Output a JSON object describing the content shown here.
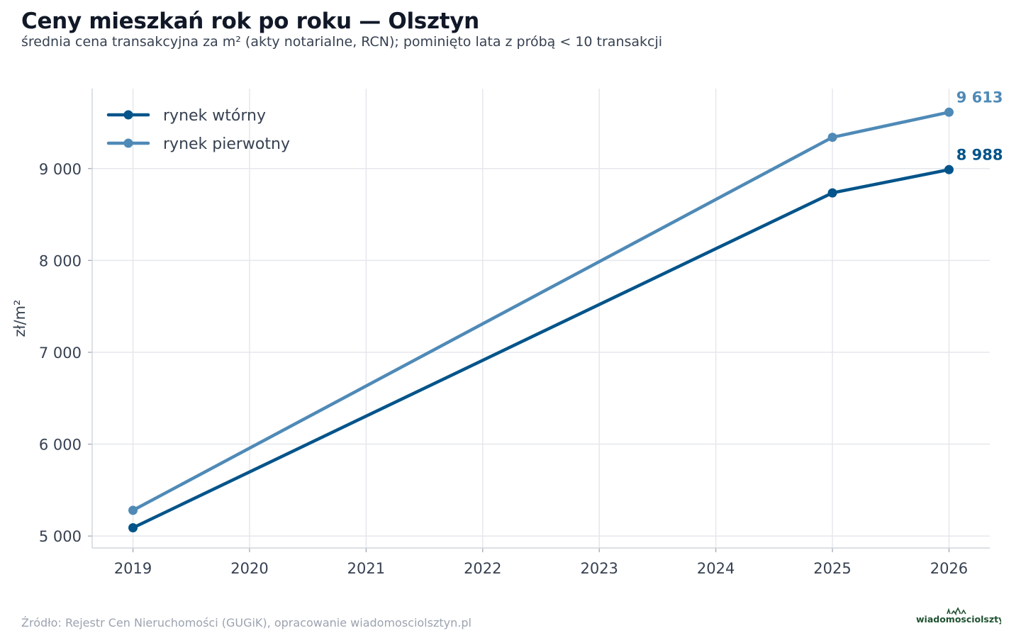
{
  "header": {
    "title": "Ceny mieszkań rok po roku — Olsztyn",
    "subtitle": "średnia cena transakcyjna za m² (akty notarialne, RCN); pominięto lata z próbą < 10 transakcji"
  },
  "footer": {
    "source": "Źródło: Rejestr Cen Nieruchomości (GUGiK), opracowanie wiadomosciolsztyn.pl",
    "logo_text": "wiadomosciolsztyn.pl"
  },
  "chart_data": {
    "type": "line",
    "title": "Ceny mieszkań rok po roku — Olsztyn",
    "subtitle": "średnia cena transakcyjna za m² (akty notarialne, RCN); pominięto lata z próbą < 10 transakcji",
    "xlabel": "",
    "ylabel": "zł/m²",
    "x_ticks": [
      "2019",
      "2020",
      "2021",
      "2022",
      "2023",
      "2024",
      "2025",
      "2026"
    ],
    "y_ticks": [
      5000,
      6000,
      7000,
      8000,
      9000
    ],
    "y_tick_labels": [
      "5 000",
      "6 000",
      "7 000",
      "8 000",
      "9 000"
    ],
    "xlim": [
      2018.65,
      2026.35
    ],
    "ylim": [
      4870,
      9870
    ],
    "grid": true,
    "legend_position": "top-left",
    "series": [
      {
        "name": "rynek wtórny",
        "color": "#03548a",
        "x": [
          2019,
          2025,
          2026
        ],
        "y": [
          5090,
          8735,
          8988
        ],
        "end_label": "8 988"
      },
      {
        "name": "rynek pierwotny",
        "color": "#4f8ab7",
        "x": [
          2019,
          2025,
          2026
        ],
        "y": [
          5280,
          9340,
          9613
        ],
        "end_label": "9 613"
      }
    ]
  }
}
